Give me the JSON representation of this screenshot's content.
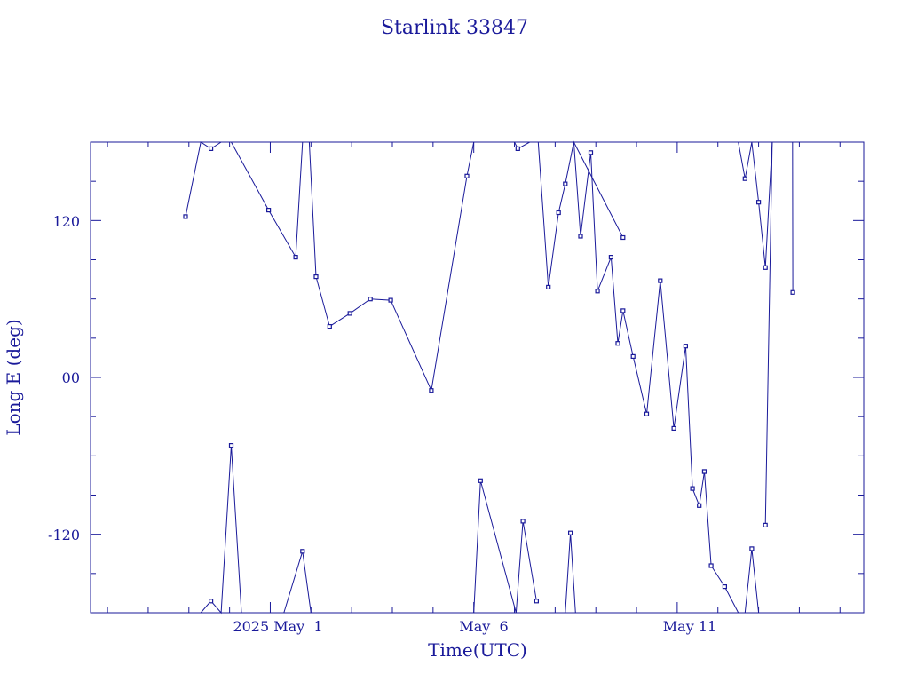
{
  "chart_data": {
    "type": "line",
    "title": "Starlink 33847",
    "xlabel": "Time(UTC)",
    "ylabel": "Long E (deg)",
    "x_tick_labels": [
      "2025 May  1",
      "May  6",
      "May 11"
    ],
    "y_tick_labels": [
      "120",
      "00",
      "-120"
    ],
    "xlim": [
      "2025-04-26 14:00",
      "2025-05-15 14:00"
    ],
    "ylim": [
      -180,
      180
    ],
    "grid": false,
    "line_color": "#1a1a9a",
    "segments": [
      {
        "x": [
          "2025-04-28 22:00",
          "2025-04-29 07:00",
          "2025-04-29 13:00",
          "2025-04-29 19:00",
          "2025-04-30 01:00",
          "2025-04-30 23:00",
          "2025-05-01 15:00",
          "2025-05-01 19:00"
        ],
        "y": [
          123,
          180,
          175,
          180,
          180,
          128,
          92,
          180
        ]
      },
      {
        "x": [
          "2025-05-01 23:00",
          "2025-05-02 03:00",
          "2025-05-02 11:00",
          "2025-05-02 23:00",
          "2025-05-03 11:00",
          "2025-05-03 23:00",
          "2025-05-04 23:00",
          "2025-05-05 20:00",
          "2025-05-06 00:00"
        ],
        "y": [
          180,
          77,
          39,
          49,
          60,
          59,
          -10,
          154,
          180
        ]
      },
      {
        "x": [
          "2025-05-07 00:00",
          "2025-05-07 02:00",
          "2025-05-07 09:00",
          "2025-05-07 14:00",
          "2025-05-07 20:00",
          "2025-05-08 02:00",
          "2025-05-08 06:00",
          "2025-05-08 11:00",
          "2025-05-09 16:00"
        ],
        "y": [
          180,
          175,
          180,
          180,
          69,
          126,
          148,
          180,
          107
        ]
      },
      {
        "x": [
          "2025-05-08 11:00",
          "2025-05-08 15:00",
          "2025-05-08 21:00",
          "2025-05-09 01:00",
          "2025-05-09 09:00",
          "2025-05-09 13:00",
          "2025-05-09 16:00",
          "2025-05-09 22:00",
          "2025-05-10 06:00",
          "2025-05-10 14:00",
          "2025-05-10 22:00",
          "2025-05-11 05:00",
          "2025-05-11 09:00",
          "2025-05-11 13:00",
          "2025-05-11 16:00"
        ],
        "y": [
          180,
          108,
          172,
          66,
          92,
          26,
          51,
          16,
          -28,
          74,
          -39,
          24,
          -85,
          -98,
          -72
        ]
      },
      {
        "x": [
          "2025-05-11 16:00",
          "2025-05-11 20:00",
          "2025-05-12 04:00",
          "2025-05-12 12:00",
          "2025-05-12 16:00",
          "2025-05-12 20:00",
          "2025-05-13 00:00",
          "2025-05-13 04:00"
        ],
        "y": [
          -72,
          -144,
          -160,
          -180,
          -180,
          -131,
          -180,
          -180
        ]
      },
      {
        "x": [
          "2025-05-13 04:00",
          "2025-05-13 08:00",
          "2025-05-13 14:00",
          "2025-05-13 20:00",
          "2025-05-13 20:10"
        ],
        "y": [
          -113,
          180,
          180,
          180,
          65
        ]
      },
      {
        "x": [
          "2025-05-12 12:00",
          "2025-05-12 16:00",
          "2025-05-12 20:00",
          "2025-05-13 00:00",
          "2025-05-13 04:00",
          "2025-05-13 08:00"
        ],
        "y": [
          180,
          152,
          180,
          134,
          84,
          180
        ]
      },
      {
        "x": [
          "2025-04-29 07:00",
          "2025-04-29 13:00",
          "2025-04-29 19:00",
          "2025-04-30 01:00",
          "2025-04-30 07:00"
        ],
        "y": [
          -180,
          -171,
          -180,
          -52,
          -180
        ]
      },
      {
        "x": [
          "2025-05-01 08:00",
          "2025-05-01 19:00",
          "2025-05-02 00:00"
        ],
        "y": [
          -180,
          -133,
          -180
        ]
      },
      {
        "x": [
          "2025-05-06 00:00",
          "2025-05-06 04:00",
          "2025-05-07 01:00",
          "2025-05-07 05:00",
          "2025-05-07 13:00"
        ],
        "y": [
          -180,
          -79,
          -180,
          -110,
          -171
        ]
      },
      {
        "x": [
          "2025-05-08 06:00",
          "2025-05-08 09:00",
          "2025-05-08 12:00"
        ],
        "y": [
          -180,
          -119,
          -180
        ]
      }
    ]
  }
}
